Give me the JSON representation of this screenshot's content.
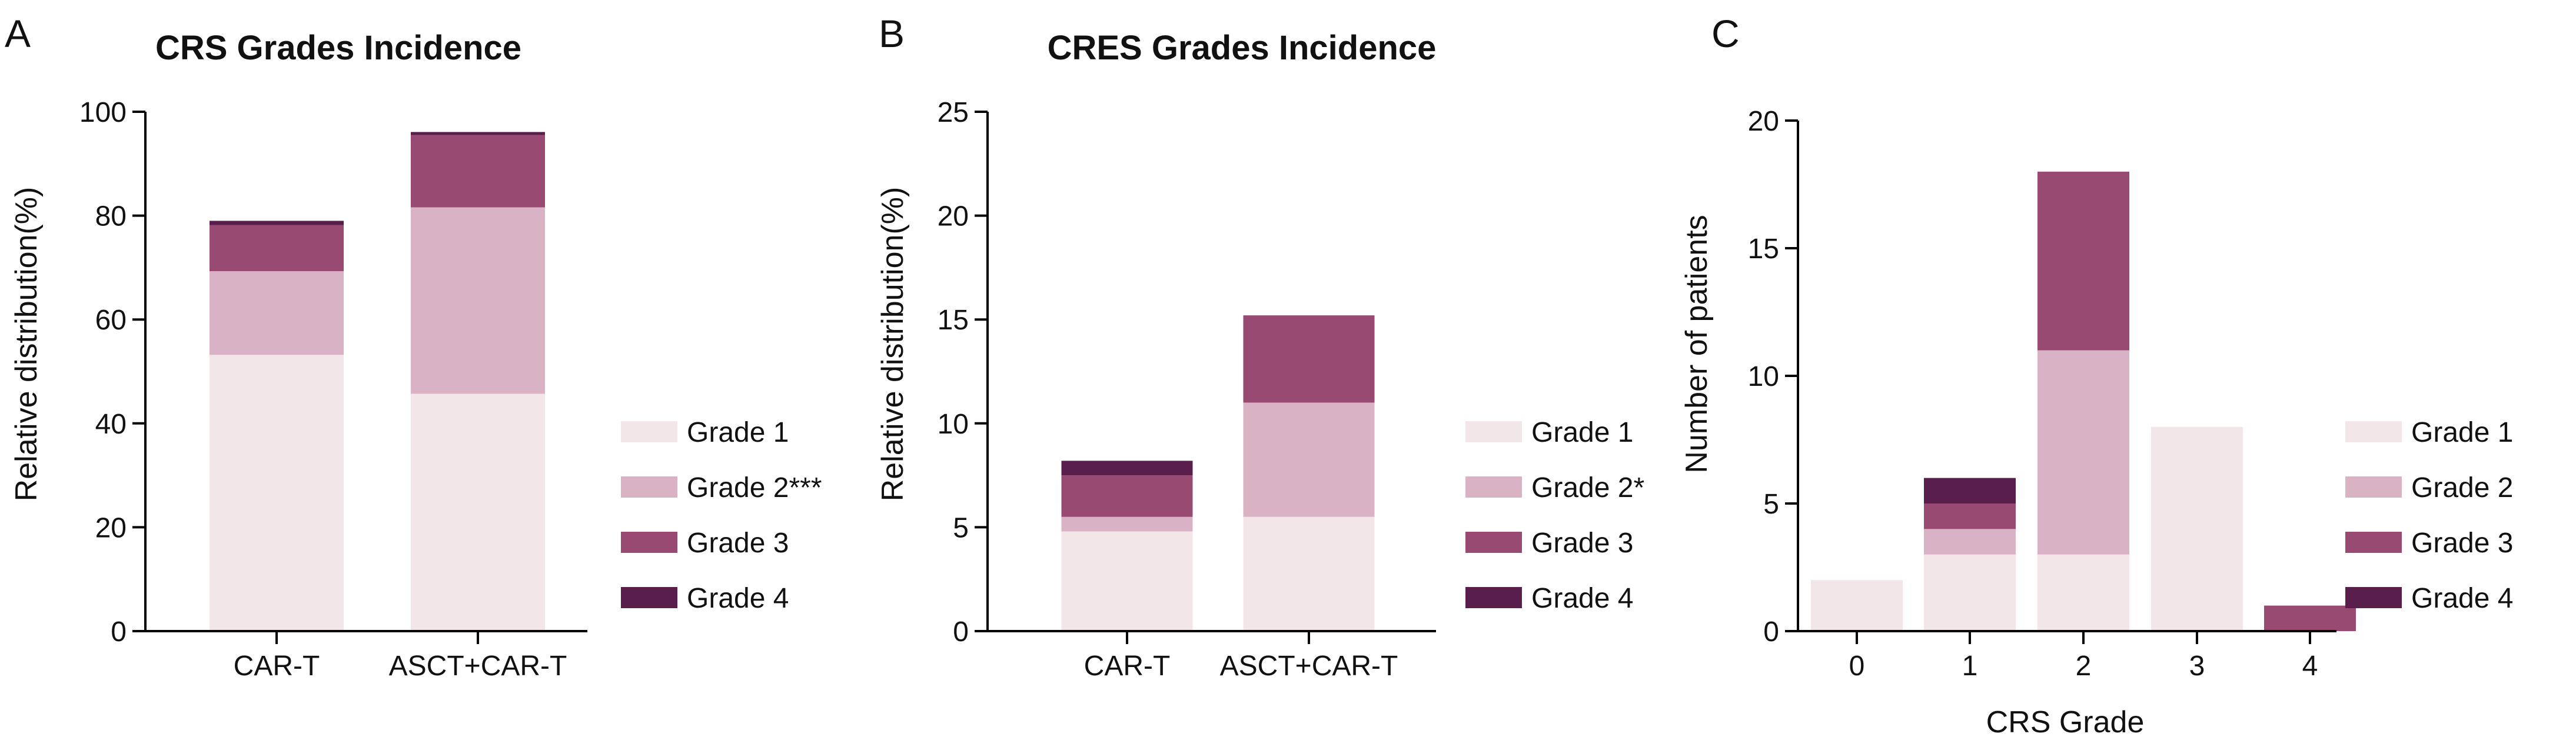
{
  "colors": {
    "grade1": "#f2e6e8",
    "grade2": "#d9b3c5",
    "grade3": "#984a72",
    "grade4": "#5a1e4c"
  },
  "chart_data": [
    {
      "panel": "A",
      "type": "bar",
      "stacked": true,
      "title": "CRS Grades Incidence",
      "xlabel": "",
      "ylabel": "Relative distribution(%)",
      "ylim": [
        0,
        100
      ],
      "yticks": [
        "0",
        "20",
        "40",
        "60",
        "80",
        "100"
      ],
      "categories": [
        "CAR-T",
        "ASCT+CAR-T"
      ],
      "series": [
        {
          "name": "Grade 1",
          "legend_label": "Grade 1",
          "color_key": "grade1",
          "values": [
            53.2,
            45.7
          ]
        },
        {
          "name": "Grade 2",
          "legend_label": "Grade 2***",
          "color_key": "grade2",
          "values": [
            16.1,
            35.9
          ]
        },
        {
          "name": "Grade 3",
          "legend_label": "Grade 3",
          "color_key": "grade3",
          "values": [
            8.9,
            13.9
          ]
        },
        {
          "name": "Grade 4",
          "legend_label": "Grade 4",
          "color_key": "grade4",
          "values": [
            0.8,
            0.6
          ]
        }
      ],
      "legend": "right"
    },
    {
      "panel": "B",
      "type": "bar",
      "stacked": true,
      "title": "CRES Grades Incidence",
      "xlabel": "",
      "ylabel": "Relative distribution(%)",
      "ylim": [
        0,
        25
      ],
      "yticks": [
        "0",
        "5",
        "10",
        "15",
        "20",
        "25"
      ],
      "categories": [
        "CAR-T",
        "ASCT+CAR-T"
      ],
      "series": [
        {
          "name": "Grade 1",
          "legend_label": "Grade 1",
          "color_key": "grade1",
          "values": [
            4.8,
            5.5
          ]
        },
        {
          "name": "Grade 2",
          "legend_label": "Grade 2*",
          "color_key": "grade2",
          "values": [
            0.7,
            5.5
          ]
        },
        {
          "name": "Grade 3",
          "legend_label": "Grade 3",
          "color_key": "grade3",
          "values": [
            2.0,
            4.2
          ]
        },
        {
          "name": "Grade 4",
          "legend_label": "Grade 4",
          "color_key": "grade4",
          "values": [
            0.7,
            0
          ]
        }
      ],
      "legend": "right"
    },
    {
      "panel": "C",
      "type": "bar",
      "stacked": true,
      "title": "",
      "xlabel": "CRS Grade",
      "ylabel": "Number of patients",
      "ylim": [
        0,
        20
      ],
      "yticks": [
        "0",
        "5",
        "10",
        "15",
        "20"
      ],
      "categories": [
        "0",
        "1",
        "2",
        "3",
        "4"
      ],
      "series": [
        {
          "name": "Grade 1",
          "legend_label": "Grade 1",
          "color_key": "grade1",
          "values": [
            2,
            3,
            3,
            8,
            0
          ]
        },
        {
          "name": "Grade 2",
          "legend_label": "Grade 2",
          "color_key": "grade2",
          "values": [
            0,
            1,
            8,
            0,
            0
          ]
        },
        {
          "name": "Grade 3",
          "legend_label": "Grade 3",
          "color_key": "grade3",
          "values": [
            0,
            1,
            7,
            0,
            1
          ]
        },
        {
          "name": "Grade 4",
          "legend_label": "Grade 4",
          "color_key": "grade4",
          "values": [
            0,
            1,
            0,
            0,
            0
          ]
        }
      ],
      "legend": "right"
    }
  ]
}
